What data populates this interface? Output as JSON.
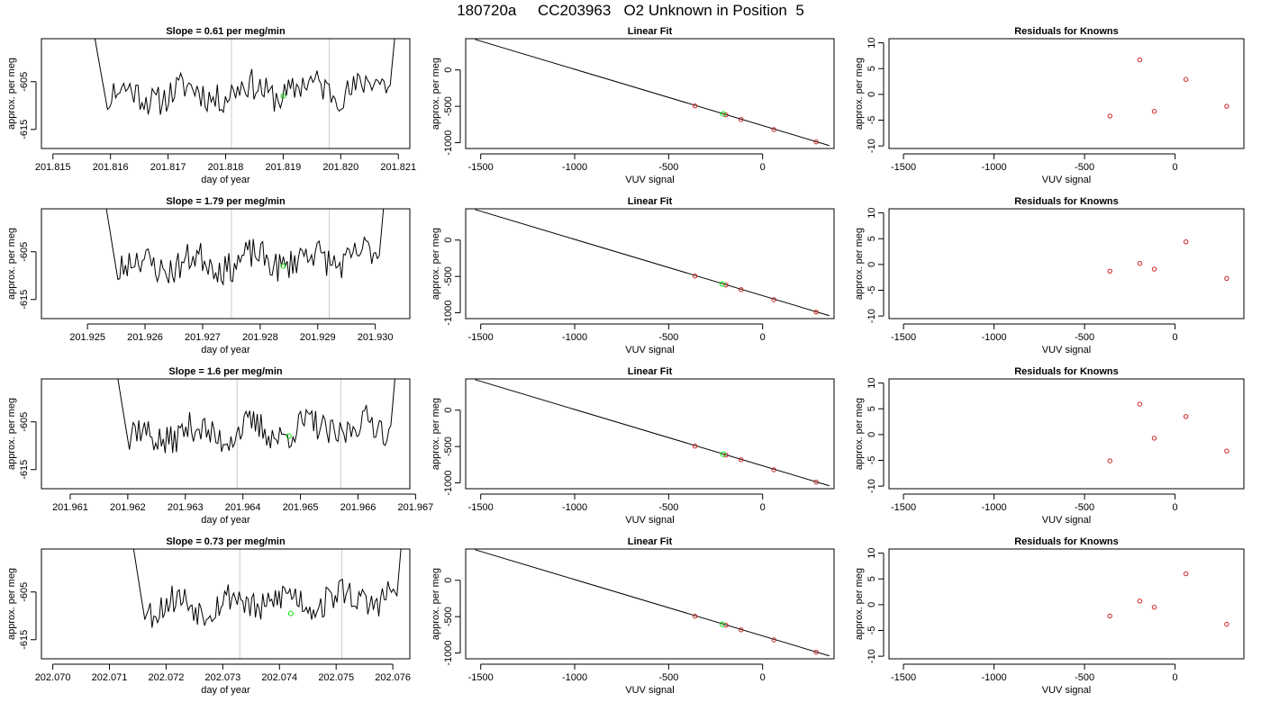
{
  "page": {
    "title": "180720a     CC203963   O2 Unknown in Position  5"
  },
  "colors": {
    "trace": "#000000",
    "frame": "#000000",
    "marker_line": "#cccccc",
    "unknown_point": "#00dd00",
    "known_point": "#cc2222"
  },
  "chart_data": [
    {
      "type": "line",
      "row": 0,
      "title": "Slope =  0.61  per meg/min",
      "xlabel": "day of year",
      "ylabel": "approx. per meg",
      "xlim": [
        201.8148,
        201.8212
      ],
      "ylim": [
        -619,
        -596
      ],
      "xticks": [
        201.815,
        201.816,
        201.817,
        201.818,
        201.819,
        201.82,
        201.821
      ],
      "xtick_labels": [
        "201.815",
        "201.816",
        "201.817",
        "201.818",
        "201.819",
        "201.820",
        "201.821"
      ],
      "yticks": [
        -605,
        -615
      ],
      "ytick_labels": [
        "-605",
        "-615"
      ],
      "trace_start": 201.8157,
      "trace_end": 201.821,
      "markers": [
        201.8181,
        201.8198
      ],
      "unknown_point": {
        "x": 201.819,
        "y": -608.0
      },
      "seed": 11
    },
    {
      "type": "scatter",
      "row": 0,
      "title": "Linear Fit",
      "xlabel": "VUV signal",
      "ylabel": "approx. per meg",
      "xlim": [
        -1580,
        380
      ],
      "ylim": [
        -1080,
        430
      ],
      "xticks": [
        -1500,
        -1000,
        -500,
        0
      ],
      "xtick_labels": [
        "-1500",
        "-1000",
        "-500",
        "0"
      ],
      "yticks": [
        0,
        -500,
        -1000
      ],
      "ytick_labels": [
        "0",
        "-500",
        "-1000"
      ],
      "fit_line": {
        "x": [
          -1530,
          355
        ],
        "y": [
          420,
          -1040
        ]
      },
      "knowns": [
        {
          "x": -360,
          "y": -495
        },
        {
          "x": -195,
          "y": -618
        },
        {
          "x": -115,
          "y": -682
        },
        {
          "x": 60,
          "y": -820
        },
        {
          "x": 285,
          "y": -990
        }
      ],
      "unknown_point": {
        "x": -210,
        "y": -605
      }
    },
    {
      "type": "scatter",
      "row": 0,
      "title": "Residuals for Knowns",
      "xlabel": "VUV signal",
      "ylabel": "approx. per meg",
      "xlim": [
        -1580,
        380
      ],
      "ylim": [
        -10.5,
        10.8
      ],
      "xticks": [
        -1500,
        -1000,
        -500,
        0
      ],
      "xtick_labels": [
        "-1500",
        "-1000",
        "-500",
        "0"
      ],
      "yticks": [
        10,
        5,
        0,
        -5,
        -10
      ],
      "ytick_labels": [
        "10",
        "5",
        "0",
        "-5",
        "-10"
      ],
      "points": [
        {
          "x": -360,
          "y": -4.2
        },
        {
          "x": -195,
          "y": 6.7
        },
        {
          "x": -115,
          "y": -3.3
        },
        {
          "x": 60,
          "y": 2.9
        },
        {
          "x": 285,
          "y": -2.3
        }
      ]
    },
    {
      "type": "line",
      "row": 1,
      "title": "Slope =  1.79  per meg/min",
      "xlabel": "day of year",
      "ylabel": "approx. per meg",
      "xlim": [
        201.9242,
        201.9306
      ],
      "ylim": [
        -619,
        -596
      ],
      "xticks": [
        201.925,
        201.926,
        201.927,
        201.928,
        201.929,
        201.93
      ],
      "xtick_labels": [
        "201.925",
        "201.926",
        "201.927",
        "201.928",
        "201.929",
        "201.930"
      ],
      "yticks": [
        -605,
        -615
      ],
      "ytick_labels": [
        "-605",
        "-615"
      ],
      "trace_start": 201.9253,
      "trace_end": 201.9302,
      "markers": [
        201.9275,
        201.9292
      ],
      "unknown_point": {
        "x": 201.9284,
        "y": -608.0
      },
      "seed": 23
    },
    {
      "type": "scatter",
      "row": 1,
      "title": "Linear Fit",
      "xlabel": "VUV signal",
      "ylabel": "approx. per meg",
      "xlim": [
        -1580,
        380
      ],
      "ylim": [
        -1080,
        430
      ],
      "xticks": [
        -1500,
        -1000,
        -500,
        0
      ],
      "xtick_labels": [
        "-1500",
        "-1000",
        "-500",
        "0"
      ],
      "yticks": [
        0,
        -500,
        -1000
      ],
      "ytick_labels": [
        "0",
        "-500",
        "-1000"
      ],
      "fit_line": {
        "x": [
          -1530,
          355
        ],
        "y": [
          420,
          -1040
        ]
      },
      "knowns": [
        {
          "x": -360,
          "y": -495
        },
        {
          "x": -195,
          "y": -618
        },
        {
          "x": -115,
          "y": -682
        },
        {
          "x": 60,
          "y": -820
        },
        {
          "x": 285,
          "y": -990
        }
      ],
      "unknown_point": {
        "x": -215,
        "y": -605
      }
    },
    {
      "type": "scatter",
      "row": 1,
      "title": "Residuals for Knowns",
      "xlabel": "VUV signal",
      "ylabel": "approx. per meg",
      "xlim": [
        -1580,
        380
      ],
      "ylim": [
        -10.5,
        10.8
      ],
      "xticks": [
        -1500,
        -1000,
        -500,
        0
      ],
      "xtick_labels": [
        "-1500",
        "-1000",
        "-500",
        "0"
      ],
      "yticks": [
        10,
        5,
        0,
        -5,
        -10
      ],
      "ytick_labels": [
        "10",
        "5",
        "0",
        "-5",
        "-10"
      ],
      "points": [
        {
          "x": -360,
          "y": -1.3
        },
        {
          "x": -195,
          "y": 0.2
        },
        {
          "x": -115,
          "y": -0.9
        },
        {
          "x": 60,
          "y": 4.4
        },
        {
          "x": 285,
          "y": -2.7
        }
      ]
    },
    {
      "type": "line",
      "row": 2,
      "title": "Slope =  1.6  per meg/min",
      "xlabel": "day of year",
      "ylabel": "approx. per meg",
      "xlim": [
        201.9605,
        201.9669
      ],
      "ylim": [
        -619,
        -596
      ],
      "xticks": [
        201.961,
        201.962,
        201.963,
        201.964,
        201.965,
        201.966,
        201.967
      ],
      "xtick_labels": [
        "201.961",
        "201.962",
        "201.963",
        "201.964",
        "201.965",
        "201.966",
        "201.967"
      ],
      "yticks": [
        -605,
        -615
      ],
      "ytick_labels": [
        "-605",
        "-615"
      ],
      "trace_start": 201.9618,
      "trace_end": 201.9667,
      "markers": [
        201.9639,
        201.9657
      ],
      "unknown_point": {
        "x": 201.9648,
        "y": -608.0
      },
      "seed": 37
    },
    {
      "type": "scatter",
      "row": 2,
      "title": "Linear Fit",
      "xlabel": "VUV signal",
      "ylabel": "approx. per meg",
      "xlim": [
        -1580,
        380
      ],
      "ylim": [
        -1080,
        430
      ],
      "xticks": [
        -1500,
        -1000,
        -500,
        0
      ],
      "xtick_labels": [
        "-1500",
        "-1000",
        "-500",
        "0"
      ],
      "yticks": [
        0,
        -500,
        -1000
      ],
      "ytick_labels": [
        "0",
        "-500",
        "-1000"
      ],
      "fit_line": {
        "x": [
          -1530,
          355
        ],
        "y": [
          420,
          -1040
        ]
      },
      "knowns": [
        {
          "x": -360,
          "y": -495
        },
        {
          "x": -195,
          "y": -618
        },
        {
          "x": -115,
          "y": -682
        },
        {
          "x": 60,
          "y": -820
        },
        {
          "x": 285,
          "y": -990
        }
      ],
      "unknown_point": {
        "x": -210,
        "y": -605
      }
    },
    {
      "type": "scatter",
      "row": 2,
      "title": "Residuals for Knowns",
      "xlabel": "VUV signal",
      "ylabel": "approx. per meg",
      "xlim": [
        -1580,
        380
      ],
      "ylim": [
        -10.5,
        10.8
      ],
      "xticks": [
        -1500,
        -1000,
        -500,
        0
      ],
      "xtick_labels": [
        "-1500",
        "-1000",
        "-500",
        "0"
      ],
      "yticks": [
        10,
        5,
        0,
        -5,
        -10
      ],
      "ytick_labels": [
        "10",
        "5",
        "0",
        "-5",
        "-10"
      ],
      "points": [
        {
          "x": -360,
          "y": -5.1
        },
        {
          "x": -195,
          "y": 5.9
        },
        {
          "x": -115,
          "y": -0.7
        },
        {
          "x": 60,
          "y": 3.5
        },
        {
          "x": 285,
          "y": -3.2
        }
      ]
    },
    {
      "type": "line",
      "row": 3,
      "title": "Slope =  0.73  per meg/min",
      "xlabel": "day of year",
      "ylabel": "approx. per meg",
      "xlim": [
        202.0698,
        202.0763
      ],
      "ylim": [
        -619,
        -596
      ],
      "xticks": [
        202.07,
        202.071,
        202.072,
        202.073,
        202.074,
        202.075,
        202.076
      ],
      "xtick_labels": [
        "202.070",
        "202.071",
        "202.072",
        "202.073",
        "202.074",
        "202.075",
        "202.076"
      ],
      "yticks": [
        -605,
        -615
      ],
      "ytick_labels": [
        "-605",
        "-615"
      ],
      "trace_start": 202.0714,
      "trace_end": 202.0762,
      "markers": [
        202.0733,
        202.0751
      ],
      "unknown_point": {
        "x": 202.0742,
        "y": -609.5
      },
      "seed": 53
    },
    {
      "type": "scatter",
      "row": 3,
      "title": "Linear Fit",
      "xlabel": "VUV signal",
      "ylabel": "approx. per meg",
      "xlim": [
        -1580,
        380
      ],
      "ylim": [
        -1080,
        430
      ],
      "xticks": [
        -1500,
        -1000,
        -500,
        0
      ],
      "xtick_labels": [
        "-1500",
        "-1000",
        "-500",
        "0"
      ],
      "yticks": [
        0,
        -500,
        -1000
      ],
      "ytick_labels": [
        "0",
        "-500",
        "-1000"
      ],
      "fit_line": {
        "x": [
          -1530,
          355
        ],
        "y": [
          420,
          -1040
        ]
      },
      "knowns": [
        {
          "x": -360,
          "y": -495
        },
        {
          "x": -195,
          "y": -618
        },
        {
          "x": -115,
          "y": -682
        },
        {
          "x": 60,
          "y": -820
        },
        {
          "x": 285,
          "y": -990
        }
      ],
      "unknown_point": {
        "x": -215,
        "y": -605
      }
    },
    {
      "type": "scatter",
      "row": 3,
      "title": "Residuals for Knowns",
      "xlabel": "VUV signal",
      "ylabel": "approx. per meg",
      "xlim": [
        -1580,
        380
      ],
      "ylim": [
        -10.5,
        10.8
      ],
      "xticks": [
        -1500,
        -1000,
        -500,
        0
      ],
      "xtick_labels": [
        "-1500",
        "-1000",
        "-500",
        "0"
      ],
      "yticks": [
        10,
        5,
        0,
        -5,
        -10
      ],
      "ytick_labels": [
        "10",
        "5",
        "0",
        "-5",
        "-10"
      ],
      "points": [
        {
          "x": -360,
          "y": -2.2
        },
        {
          "x": -195,
          "y": 0.7
        },
        {
          "x": -115,
          "y": -0.5
        },
        {
          "x": 60,
          "y": 6.0
        },
        {
          "x": 285,
          "y": -3.8
        }
      ]
    }
  ]
}
